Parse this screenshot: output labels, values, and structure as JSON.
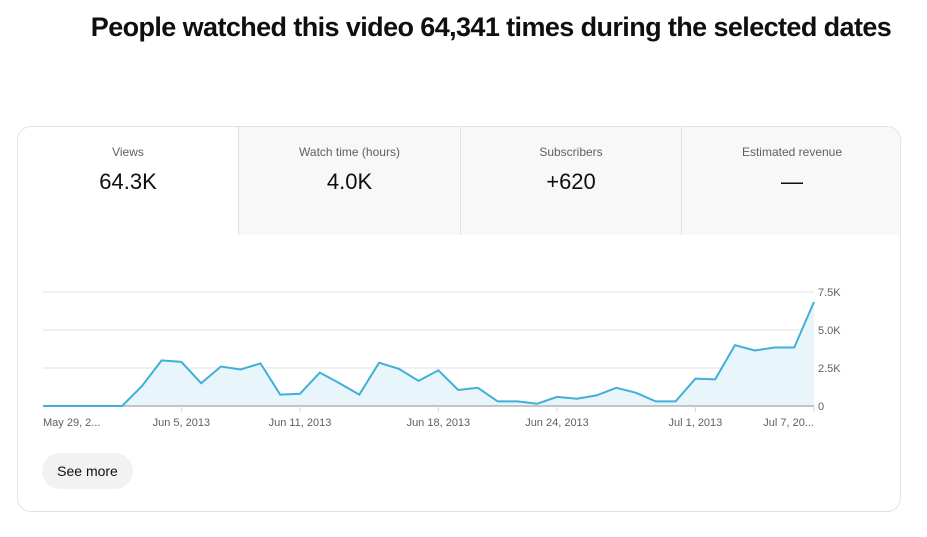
{
  "headline": "People watched this video 64,341 times during the selected dates",
  "tabs": [
    {
      "label": "Views",
      "value": "64.3K",
      "active": true
    },
    {
      "label": "Watch time (hours)",
      "value": "4.0K",
      "active": false
    },
    {
      "label": "Subscribers",
      "value": "+620",
      "active": false
    },
    {
      "label": "Estimated revenue",
      "value": "—",
      "active": false
    }
  ],
  "see_more_label": "See more",
  "colors": {
    "line": "#41afd9",
    "fill": "#e8f5fb",
    "grid": "#ececec",
    "axis": "#909090"
  },
  "chart_data": {
    "type": "area",
    "title": "Views",
    "xlabel": "",
    "ylabel": "",
    "ylim": [
      0,
      7500
    ],
    "y_ticks": [
      "0",
      "2.5K",
      "5.0K",
      "7.5K"
    ],
    "y_tick_values": [
      0,
      2500,
      5000,
      7500
    ],
    "x_tick_labels": [
      "May 29, 2...",
      "Jun 5, 2013",
      "Jun 11, 2013",
      "Jun 18, 2013",
      "Jun 24, 2013",
      "Jul 1, 2013",
      "Jul 7, 20..."
    ],
    "x_tick_indices": [
      0,
      7,
      13,
      20,
      26,
      33,
      39
    ],
    "grid": true,
    "legend": "none",
    "x": [
      "May 29",
      "May 30",
      "May 31",
      "Jun 1",
      "Jun 2",
      "Jun 3",
      "Jun 4",
      "Jun 5",
      "Jun 6",
      "Jun 7",
      "Jun 8",
      "Jun 9",
      "Jun 10",
      "Jun 11",
      "Jun 12",
      "Jun 13",
      "Jun 14",
      "Jun 15",
      "Jun 16",
      "Jun 17",
      "Jun 18",
      "Jun 19",
      "Jun 20",
      "Jun 21",
      "Jun 22",
      "Jun 23",
      "Jun 24",
      "Jun 25",
      "Jun 26",
      "Jun 27",
      "Jun 28",
      "Jun 29",
      "Jun 30",
      "Jul 1",
      "Jul 2",
      "Jul 3",
      "Jul 4",
      "Jul 5",
      "Jul 6",
      "Jul 7"
    ],
    "series": [
      {
        "name": "Views",
        "values": [
          0,
          0,
          0,
          0,
          0,
          1300,
          3000,
          2900,
          1500,
          2600,
          2400,
          2800,
          750,
          800,
          2200,
          1500,
          750,
          2850,
          2450,
          1650,
          2350,
          1050,
          1200,
          300,
          300,
          150,
          600,
          480,
          700,
          1200,
          870,
          300,
          300,
          1800,
          1750,
          4000,
          3650,
          3850,
          3850,
          6850
        ]
      }
    ]
  }
}
